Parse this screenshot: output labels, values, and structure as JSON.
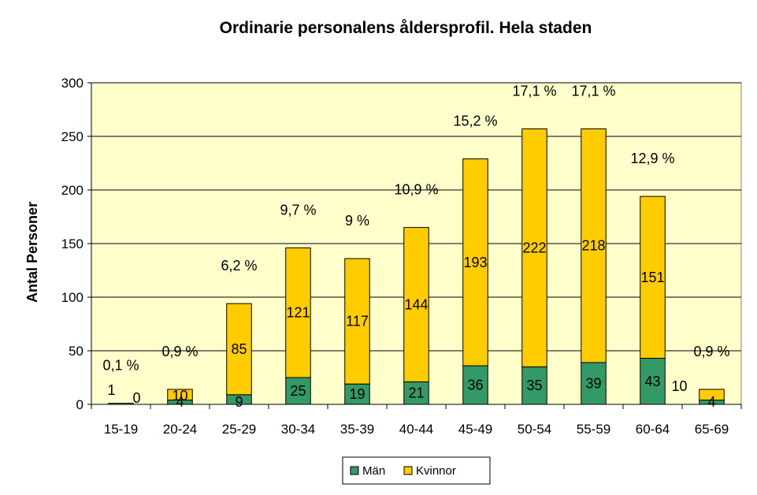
{
  "chart_data": {
    "type": "bar",
    "stacked": true,
    "title": "Ordinarie personalens åldersprofil. Hela staden",
    "xlabel": "",
    "ylabel": "Antal Personer",
    "ylim": [
      0,
      300
    ],
    "yticks": [
      "0",
      "50",
      "100",
      "150",
      "200",
      "250",
      "300"
    ],
    "grid": true,
    "legend_position": "bottom",
    "categories": [
      "15-19",
      "20-24",
      "25-29",
      "30-34",
      "35-39",
      "40-44",
      "45-49",
      "50-54",
      "55-59",
      "60-64",
      "65-69"
    ],
    "series": [
      {
        "name": "Män",
        "color": "#339966",
        "values": [
          1,
          4,
          9,
          25,
          19,
          21,
          36,
          35,
          39,
          43,
          4
        ],
        "labels": [
          "1",
          "4",
          "9",
          "25",
          "19",
          "21",
          "36",
          "35",
          "39",
          "43",
          "4"
        ]
      },
      {
        "name": "Kvinnor",
        "color": "#FFCC00",
        "values": [
          0,
          10,
          85,
          121,
          117,
          144,
          193,
          222,
          218,
          151,
          10
        ],
        "labels": [
          "0",
          "10",
          "85",
          "121",
          "117",
          "144",
          "193",
          "222",
          "218",
          "151",
          "10"
        ]
      }
    ],
    "percent_labels": [
      "0,1 %",
      "0,9 %",
      "6,2 %",
      "9,7 %",
      "9 %",
      "10,9 %",
      "15,2 %",
      "17,1 %",
      "17,1 %",
      "12,9 %",
      "0,9 %"
    ],
    "plot_background": "#FFFFCC"
  }
}
